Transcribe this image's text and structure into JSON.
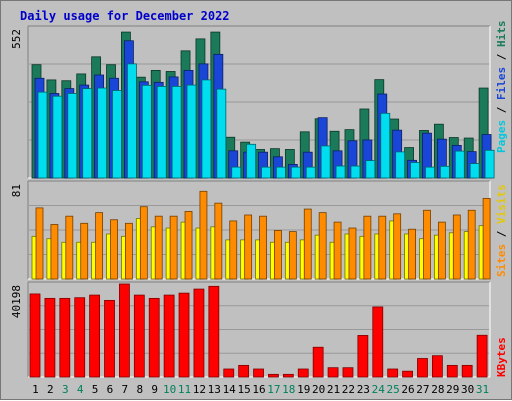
{
  "chart_data": [
    {
      "type": "bar",
      "title": "Daily usage for December 2022",
      "y_max_label": "552",
      "ylim": [
        0,
        552
      ],
      "legend": {
        "pages": "Pages",
        "files": "Files",
        "hits": "Hits",
        "separator": " / "
      },
      "x": [
        "1",
        "2",
        "3",
        "4",
        "5",
        "6",
        "7",
        "8",
        "9",
        "10",
        "11",
        "12",
        "13",
        "14",
        "15",
        "16",
        "17",
        "18",
        "19",
        "20",
        "21",
        "22",
        "23",
        "24",
        "25",
        "26",
        "27",
        "28",
        "29",
        "30",
        "31"
      ],
      "series": [
        {
          "name": "Hits",
          "color": "#1a7a5a",
          "values": [
            417,
            361,
            358,
            383,
            446,
            417,
            537,
            371,
            396,
            392,
            468,
            512,
            537,
            150,
            132,
            105,
            108,
            105,
            170,
            218,
            172,
            178,
            254,
            362,
            217,
            112,
            175,
            198,
            149,
            147,
            331
          ]
        },
        {
          "name": "Files",
          "color": "#1a46d8",
          "values": [
            367,
            311,
            329,
            342,
            379,
            367,
            505,
            354,
            352,
            372,
            396,
            420,
            455,
            100,
            95,
            95,
            78,
            50,
            95,
            222,
            100,
            137,
            140,
            309,
            176,
            65,
            165,
            143,
            120,
            97,
            160
          ]
        },
        {
          "name": "Pages",
          "color": "#00ddee",
          "values": [
            316,
            301,
            311,
            329,
            331,
            322,
            420,
            341,
            337,
            337,
            342,
            361,
            327,
            40,
            124,
            40,
            40,
            40,
            40,
            118,
            44,
            44,
            64,
            238,
            96,
            57,
            40,
            43,
            99,
            53,
            102
          ]
        }
      ]
    },
    {
      "type": "bar",
      "y_max_label": "81",
      "ylim": [
        0,
        81
      ],
      "legend": {
        "sites": "Sites",
        "visits": "Visits",
        "separator": " / "
      },
      "x": [
        "1",
        "2",
        "3",
        "4",
        "5",
        "6",
        "7",
        "8",
        "9",
        "10",
        "11",
        "12",
        "13",
        "14",
        "15",
        "16",
        "17",
        "18",
        "19",
        "20",
        "21",
        "22",
        "23",
        "24",
        "25",
        "26",
        "27",
        "28",
        "29",
        "30",
        "31"
      ],
      "series": [
        {
          "name": "Visits",
          "color": "#ffff00",
          "values": [
            36,
            34,
            31,
            31,
            31,
            38,
            36,
            51,
            44,
            43,
            48,
            43,
            44,
            33,
            33,
            33,
            31,
            31,
            33,
            37,
            31,
            38,
            36,
            38,
            49,
            38,
            34,
            37,
            39,
            40,
            45
          ]
        },
        {
          "name": "Sites",
          "color": "#ff8c00",
          "values": [
            60,
            46,
            53,
            47,
            56,
            50,
            47,
            61,
            53,
            53,
            57,
            74,
            64,
            49,
            54,
            53,
            41,
            40,
            59,
            56,
            48,
            43,
            53,
            53,
            55,
            42,
            58,
            48,
            54,
            58,
            68
          ]
        }
      ]
    },
    {
      "type": "bar",
      "y_max_label": "40198",
      "ylim": [
        0,
        40198
      ],
      "legend": {
        "kbytes": "KBytes"
      },
      "x": [
        "1",
        "2",
        "3",
        "4",
        "5",
        "6",
        "7",
        "8",
        "9",
        "10",
        "11",
        "12",
        "13",
        "14",
        "15",
        "16",
        "17",
        "18",
        "19",
        "20",
        "21",
        "22",
        "23",
        "24",
        "25",
        "26",
        "27",
        "28",
        "29",
        "30",
        "31"
      ],
      "weekend_days": [
        "3",
        "4",
        "10",
        "11",
        "17",
        "18",
        "24",
        "25",
        "31"
      ],
      "series": [
        {
          "name": "KBytes",
          "color": "#ff0000",
          "values": [
            35897,
            33986,
            33986,
            34276,
            35407,
            33115,
            40198,
            35407,
            33986,
            35407,
            36253,
            38007,
            39198,
            3456,
            5025,
            3456,
            1152,
            1152,
            3456,
            12865,
            4025,
            4025,
            17965,
            30275,
            3456,
            2512,
            8002,
            9214,
            5025,
            5025,
            18045
          ]
        }
      ]
    }
  ]
}
